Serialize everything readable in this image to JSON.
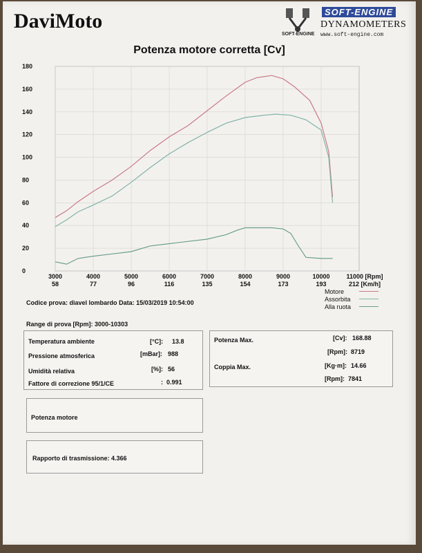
{
  "brand": "DaviMoto",
  "logo": {
    "tag": "SOFT-ENGINE",
    "subtitle": "DYNAMOMETERS",
    "url": "www.soft-engine.com",
    "small": "SOFT-ENGINE"
  },
  "chart_data": {
    "type": "line",
    "title": "Potenza motore corretta [Cv]",
    "xlabel_rpm": "11000 [Rpm]",
    "xlabel_kmh": "212 [Km/h]",
    "xlim": [
      3000,
      11000
    ],
    "ylim": [
      0,
      180
    ],
    "yticks": [
      0,
      20,
      40,
      60,
      80,
      100,
      120,
      140,
      160,
      180
    ],
    "xticks_rpm": [
      "3000",
      "4000",
      "5000",
      "6000",
      "7000",
      "8000",
      "9000",
      "10000"
    ],
    "xticks_kmh": [
      "58",
      "77",
      "96",
      "116",
      "135",
      "154",
      "173",
      "193"
    ],
    "grid": true,
    "legend_position": "bottom-right",
    "series": [
      {
        "name": "Motore",
        "color": "#c87a86",
        "x": [
          3000,
          3300,
          3600,
          4000,
          4500,
          5000,
          5500,
          6000,
          6500,
          7000,
          7500,
          8000,
          8300,
          8700,
          9000,
          9300,
          9700,
          10000,
          10200,
          10300
        ],
        "y": [
          47,
          53,
          61,
          70,
          80,
          92,
          106,
          118,
          128,
          141,
          154,
          166,
          170,
          172,
          169,
          162,
          150,
          130,
          105,
          65
        ]
      },
      {
        "name": "Assorbita",
        "color": "#7fb3a8",
        "x": [
          3000,
          3300,
          3600,
          4000,
          4500,
          5000,
          5500,
          6000,
          6500,
          7000,
          7500,
          8000,
          8500,
          8800,
          9200,
          9600,
          10000,
          10200,
          10300
        ],
        "y": [
          39,
          45,
          52,
          58,
          66,
          78,
          91,
          103,
          113,
          122,
          130,
          135,
          137,
          138,
          137,
          133,
          124,
          100,
          60
        ]
      },
      {
        "name": "Alla ruota",
        "color": "#6a9f8e",
        "x": [
          3000,
          3300,
          3600,
          4000,
          4500,
          5000,
          5500,
          6000,
          6500,
          7000,
          7500,
          7800,
          8000,
          8300,
          8700,
          9000,
          9200,
          9400,
          9600,
          10000,
          10300
        ],
        "y": [
          8,
          6,
          11,
          13,
          15,
          17,
          22,
          24,
          26,
          28,
          32,
          36,
          38,
          38,
          38,
          37,
          33,
          22,
          12,
          11,
          11
        ]
      }
    ]
  },
  "test": {
    "code_label": "Codice prova:",
    "code_value": "diavel lombardo",
    "date_label": "Data:",
    "date_value": "15/03/2019 10:54:00",
    "range_label": "Range di prova [Rpm]:",
    "range_value": "3000-10303"
  },
  "conditions": [
    {
      "label": "Temperatura ambiente",
      "unit": "[°C]:",
      "value": "13.8"
    },
    {
      "label": "Pressione atmosferica",
      "unit": "[mBar]:",
      "value": "988"
    },
    {
      "label": "Umidità relativa",
      "unit": "[%]:",
      "value": "56"
    },
    {
      "label": "Fattore di correzione 95/1/CE",
      "unit": ":",
      "value": "0.991"
    }
  ],
  "results": {
    "power_label": "Potenza Max.",
    "power_unit": "[Cv]:",
    "power_value": "168.88",
    "power_rpm_unit": "[Rpm]:",
    "power_rpm_value": "8719",
    "torque_label": "Coppia Max.",
    "torque_unit": "[Kg·m]:",
    "torque_value": "14.66",
    "torque_rpm_unit": "[Rpm]:",
    "torque_rpm_value": "7841"
  },
  "box_power_label": "Potenza motore",
  "transmission_label": "Rapporto di trasmissione:",
  "transmission_value": "4.366"
}
